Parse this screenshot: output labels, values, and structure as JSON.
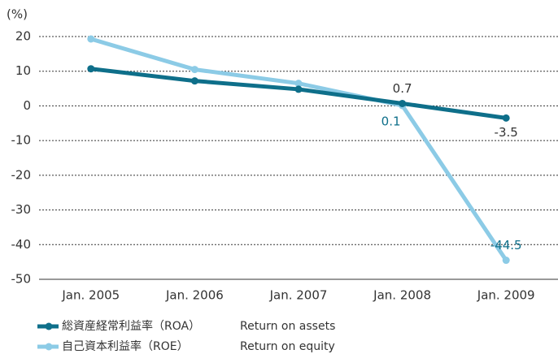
{
  "chart_data": {
    "type": "line",
    "unit_label": "(%)",
    "categories": [
      "Jan. 2005",
      "Jan. 2006",
      "Jan. 2007",
      "Jan. 2008",
      "Jan. 2009"
    ],
    "series": [
      {
        "name": "総資産経常利益率（ROA）",
        "name_en": "Return on assets",
        "color": "#0e6f8a",
        "values": [
          10.7,
          7.2,
          4.8,
          0.7,
          -3.5
        ],
        "value_labels": [
          null,
          null,
          null,
          "0.7",
          "-3.5"
        ],
        "label_color": "#333333"
      },
      {
        "name": "自己資本利益率（ROE）",
        "name_en": "Return on equity",
        "color": "#8ccbe6",
        "values": [
          19.3,
          10.5,
          6.5,
          0.1,
          -44.5
        ],
        "value_labels": [
          null,
          null,
          null,
          "0.1",
          "-44.5"
        ],
        "label_color": "#0e6f8a"
      }
    ],
    "ylim": [
      -50,
      20
    ],
    "yticks": [
      -50,
      -40,
      -30,
      -20,
      -10,
      0,
      10,
      20
    ],
    "grid": true
  }
}
